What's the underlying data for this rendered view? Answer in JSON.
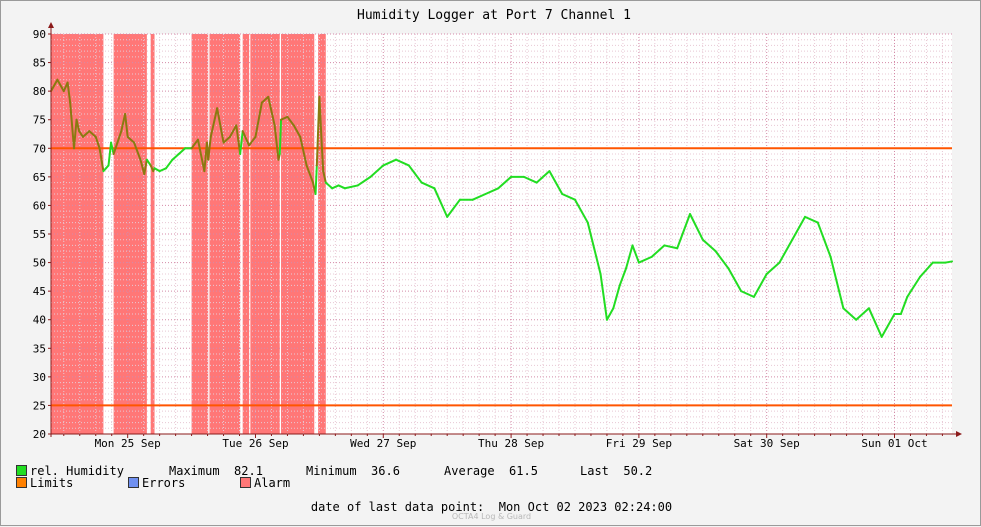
{
  "chart_data": {
    "type": "line",
    "title": "Humidity Logger at Port 7 Channel 1",
    "ylim": [
      20,
      90
    ],
    "yticks": [
      20,
      25,
      30,
      35,
      40,
      45,
      50,
      55,
      60,
      65,
      70,
      75,
      80,
      85,
      90
    ],
    "xlim": [
      -0.6,
      6.45
    ],
    "xtick_labels": [
      "Mon 25 Sep",
      "Tue 26 Sep",
      "Wed 27 Sep",
      "Thu 28 Sep",
      "Fri 29 Sep",
      "Sat 30 Sep",
      "Sun 01 Oct"
    ],
    "x_unit": "days from Mon 25 Sep 00:00",
    "grid": true,
    "limits": [
      70,
      25
    ],
    "alarm_intervals": [
      [
        -0.6,
        -0.19
      ],
      [
        -0.11,
        0.15
      ],
      [
        0.18,
        0.21
      ],
      [
        0.5,
        0.63
      ],
      [
        0.64,
        0.88
      ],
      [
        0.9,
        0.95
      ],
      [
        0.96,
        1.19
      ],
      [
        1.2,
        1.46
      ],
      [
        1.49,
        1.55
      ]
    ],
    "series": [
      {
        "name": "rel. Humidity",
        "x": [
          -0.6,
          -0.55,
          -0.5,
          -0.47,
          -0.45,
          -0.42,
          -0.4,
          -0.38,
          -0.35,
          -0.3,
          -0.25,
          -0.22,
          -0.19,
          -0.17,
          -0.15,
          -0.13,
          -0.11,
          -0.08,
          -0.05,
          -0.02,
          0.0,
          0.05,
          0.1,
          0.13,
          0.15,
          0.18,
          0.2,
          0.21,
          0.25,
          0.3,
          0.35,
          0.4,
          0.45,
          0.5,
          0.55,
          0.6,
          0.62,
          0.63,
          0.65,
          0.7,
          0.75,
          0.8,
          0.85,
          0.88,
          0.9,
          0.95,
          1.0,
          1.05,
          1.1,
          1.15,
          1.18,
          1.19,
          1.2,
          1.25,
          1.3,
          1.35,
          1.4,
          1.45,
          1.47,
          1.48,
          1.5,
          1.52,
          1.53,
          1.55,
          1.6,
          1.65,
          1.7,
          1.8,
          1.9,
          2.0,
          2.1,
          2.2,
          2.3,
          2.4,
          2.5,
          2.6,
          2.7,
          2.8,
          2.9,
          3.0,
          3.1,
          3.2,
          3.3,
          3.4,
          3.5,
          3.6,
          3.7,
          3.75,
          3.8,
          3.85,
          3.9,
          3.95,
          4.0,
          4.1,
          4.2,
          4.3,
          4.4,
          4.5,
          4.6,
          4.7,
          4.8,
          4.9,
          5.0,
          5.1,
          5.2,
          5.3,
          5.4,
          5.5,
          5.6,
          5.7,
          5.8,
          5.9,
          6.0,
          6.05,
          6.1,
          6.2,
          6.3,
          6.4,
          6.45
        ],
        "values": [
          80.0,
          82.0,
          80.0,
          81.5,
          78.0,
          70.0,
          75.0,
          73.0,
          72.0,
          73.0,
          72.0,
          70.0,
          66.0,
          66.5,
          67.0,
          71.0,
          69.0,
          71.0,
          73.0,
          76.0,
          72.0,
          71.0,
          68.0,
          65.5,
          68.0,
          67.0,
          66.0,
          66.5,
          66.0,
          66.5,
          68.0,
          69.0,
          70.0,
          70.0,
          71.5,
          66.0,
          71.0,
          68.0,
          72.0,
          77.0,
          71.0,
          72.0,
          74.0,
          69.0,
          73.0,
          70.5,
          72.0,
          78.0,
          79.0,
          74.0,
          68.0,
          69.0,
          75.0,
          75.5,
          74.0,
          72.0,
          67.0,
          64.0,
          62.0,
          67.0,
          79.0,
          70.0,
          66.0,
          64.0,
          63.0,
          63.5,
          63.0,
          63.5,
          65.0,
          67.0,
          68.0,
          67.0,
          64.0,
          63.0,
          58.0,
          61.0,
          61.0,
          62.0,
          63.0,
          65.0,
          65.0,
          64.0,
          66.0,
          62.0,
          61.0,
          57.0,
          48.0,
          40.0,
          42.0,
          46.0,
          49.0,
          53.0,
          50.0,
          51.0,
          53.0,
          52.5,
          58.5,
          54.0,
          52.0,
          49.0,
          45.0,
          44.0,
          48.0,
          50.0,
          54.0,
          58.0,
          57.0,
          51.0,
          42.0,
          40.0,
          42.0,
          37.0,
          41.0,
          41.0,
          44.0,
          47.5,
          50.0,
          50.0,
          50.2
        ]
      }
    ]
  },
  "legend": {
    "humidity_label": "rel. Humidity",
    "limits_label": "Limits",
    "errors_label": "Errors",
    "alarm_label": "Alarm",
    "max_label": "Maximum",
    "max_value": "82.1",
    "min_label": "Minimum",
    "min_value": "36.6",
    "avg_label": "Average",
    "avg_value": "61.5",
    "last_label": "Last",
    "last_value": "50.2"
  },
  "footer": {
    "text": "date of last data point:  Mon Oct 02 2023 02:24:00",
    "watermark": "OCTA4 Log & Guard"
  },
  "colors": {
    "series": "#22dd22",
    "series_in_alarm": "#8a7a10",
    "limits": "#ff5500",
    "errors": "#7090f0",
    "alarm": "#ff7777",
    "grid_major": "#d48aa8",
    "grid_minor": "#e8c8d4",
    "axis": "#8b1a1a"
  }
}
